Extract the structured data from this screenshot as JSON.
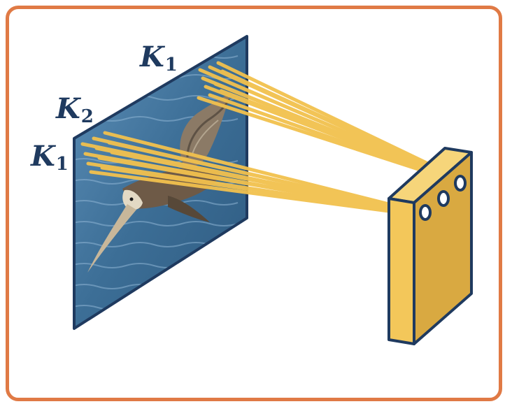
{
  "labels": {
    "k1_top": {
      "letter": "K",
      "sub": "1"
    },
    "k2": {
      "letter": "K",
      "sub": "2"
    },
    "k1_bottom": {
      "letter": "K",
      "sub": "1"
    }
  },
  "colors": {
    "frame_border": "#E07A45",
    "panel_border": "#1F3A5F",
    "water": "#3C6E96",
    "rays": "#F2C14E",
    "sensor_front": "#F3C75A",
    "sensor_side": "#D9A941"
  }
}
